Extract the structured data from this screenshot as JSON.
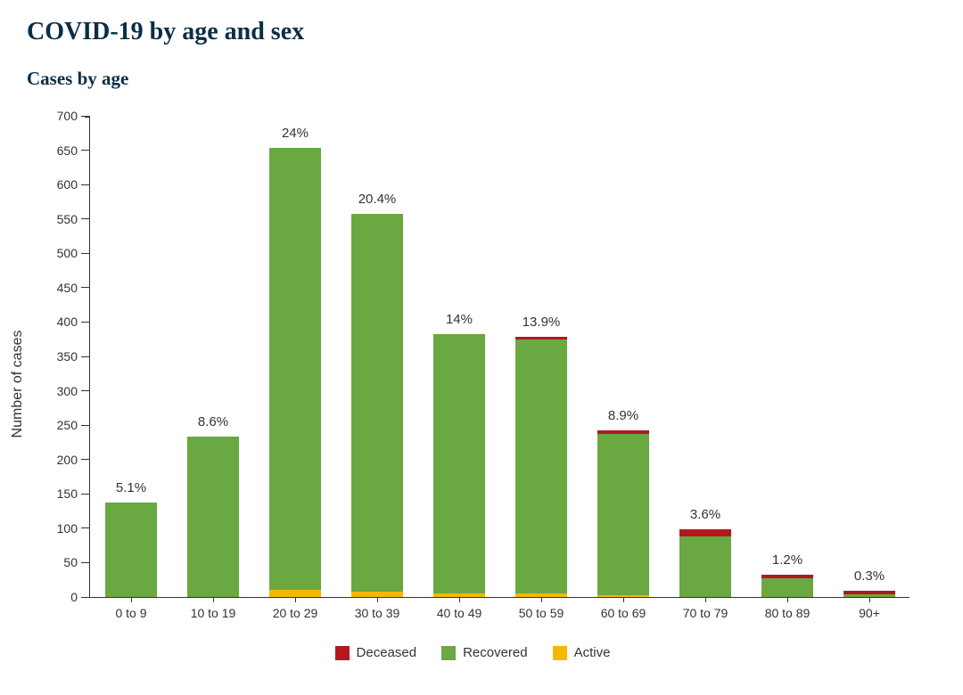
{
  "page": {
    "title": "COVID-19 by age and sex",
    "subtitle": "Cases by age"
  },
  "chart": {
    "type": "stacked-bar",
    "y_axis_label": "Number of cases",
    "ylim": [
      0,
      700
    ],
    "ytick_step": 50,
    "label_fontsize": 16,
    "tick_fontsize": 14,
    "bar_label_fontsize": 15,
    "bar_width_ratio": 0.62,
    "colors": {
      "deceased": "#b3181e",
      "recovered": "#6aa842",
      "active": "#f5b800",
      "axis": "#333333",
      "background": "#ffffff",
      "text": "#333333"
    },
    "categories": [
      "0 to 9",
      "10 to 19",
      "20 to 29",
      "30 to 39",
      "40 to 49",
      "50 to 59",
      "60 to 69",
      "70 to 79",
      "80 to 89",
      "90+"
    ],
    "series_order": [
      "active",
      "recovered",
      "deceased"
    ],
    "data": [
      {
        "active": 0,
        "recovered": 138,
        "deceased": 0,
        "label": "5.1%"
      },
      {
        "active": 0,
        "recovered": 234,
        "deceased": 0,
        "label": "8.6%"
      },
      {
        "active": 10,
        "recovered": 643,
        "deceased": 0,
        "label": "24%"
      },
      {
        "active": 8,
        "recovered": 549,
        "deceased": 0,
        "label": "20.4%"
      },
      {
        "active": 5,
        "recovered": 377,
        "deceased": 0,
        "label": "14%"
      },
      {
        "active": 5,
        "recovered": 370,
        "deceased": 4,
        "label": "13.9%"
      },
      {
        "active": 3,
        "recovered": 234,
        "deceased": 6,
        "label": "8.9%"
      },
      {
        "active": 0,
        "recovered": 88,
        "deceased": 10,
        "label": "3.6%"
      },
      {
        "active": 0,
        "recovered": 27,
        "deceased": 6,
        "label": "1.2%"
      },
      {
        "active": 0,
        "recovered": 4,
        "deceased": 5,
        "label": "0.3%"
      }
    ],
    "legend": [
      {
        "key": "deceased",
        "label": "Deceased"
      },
      {
        "key": "recovered",
        "label": "Recovered"
      },
      {
        "key": "active",
        "label": "Active"
      }
    ]
  }
}
